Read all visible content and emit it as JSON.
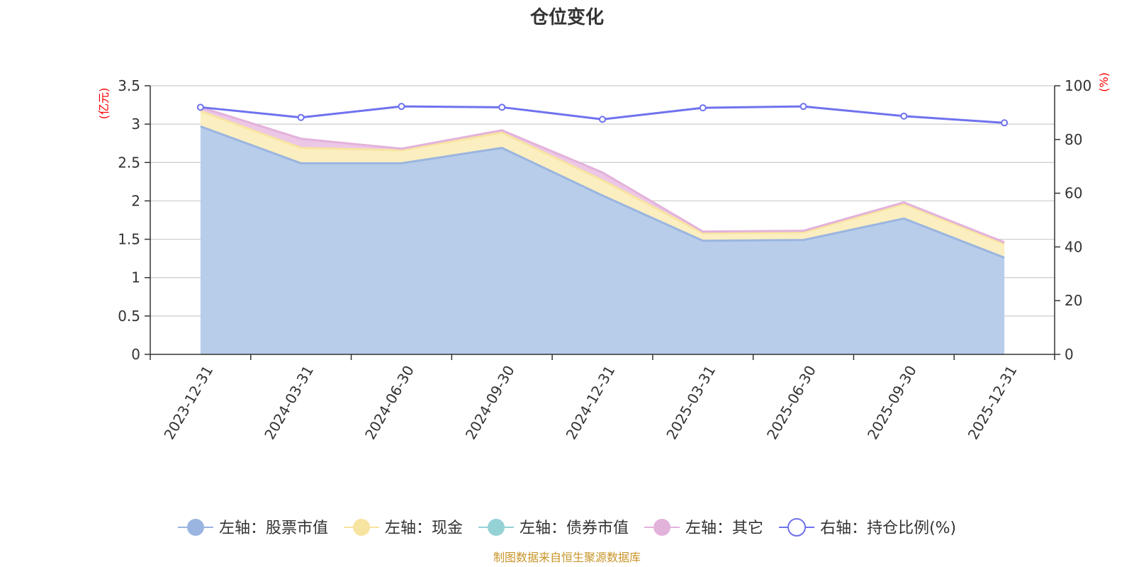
{
  "chart_data": {
    "type": "area",
    "title": "仓位变化",
    "categories": [
      "2023-12-31",
      "2024-03-31",
      "2024-06-30",
      "2024-09-30",
      "2024-12-31",
      "2025-03-31",
      "2025-06-30",
      "2025-09-30",
      "2025-12-31"
    ],
    "left_axis": {
      "unit": "(亿元)",
      "ylim": [
        0,
        3.5
      ],
      "ticks": [
        "0",
        "0.5",
        "1",
        "1.5",
        "2",
        "2.5",
        "3",
        "3.5"
      ]
    },
    "right_axis": {
      "unit": "(%)",
      "ylim": [
        0,
        100
      ],
      "ticks": [
        "0",
        "20",
        "40",
        "60",
        "80",
        "100"
      ]
    },
    "series": [
      {
        "name": "左轴：股票市值",
        "axis": "left",
        "kind": "stacked-area",
        "color": "#9ab5e0",
        "fill": "#b8cdea",
        "values": [
          2.97,
          2.49,
          2.49,
          2.69,
          2.07,
          1.48,
          1.49,
          1.77,
          1.26
        ]
      },
      {
        "name": "左轴：现金",
        "axis": "left",
        "kind": "stacked-area",
        "color": "#f7e4a0",
        "fill": "#fbeec0",
        "values": [
          0.2,
          0.2,
          0.17,
          0.2,
          0.2,
          0.1,
          0.1,
          0.19,
          0.18
        ]
      },
      {
        "name": "左轴：债券市值",
        "axis": "left",
        "kind": "stacked-area",
        "color": "#94d2d5",
        "fill": "#b5e2e4",
        "values": [
          0,
          0,
          0,
          0,
          0,
          0,
          0,
          0,
          0
        ]
      },
      {
        "name": "左轴：其它",
        "axis": "left",
        "kind": "stacked-area",
        "color": "#e3b2db",
        "fill": "#ecc7e6",
        "values": [
          0.05,
          0.12,
          0.02,
          0.03,
          0.1,
          0.02,
          0.02,
          0.02,
          0.02
        ]
      },
      {
        "name": "右轴：持仓比例(%)",
        "axis": "right",
        "kind": "line",
        "color": "#6f72ee",
        "values": [
          92.0,
          88.2,
          92.3,
          92.0,
          87.5,
          91.8,
          92.3,
          88.7,
          86.2
        ]
      }
    ],
    "legend_position": "bottom-center",
    "grid": true
  },
  "footer": {
    "source": "制图数据来自恒生聚源数据库"
  }
}
